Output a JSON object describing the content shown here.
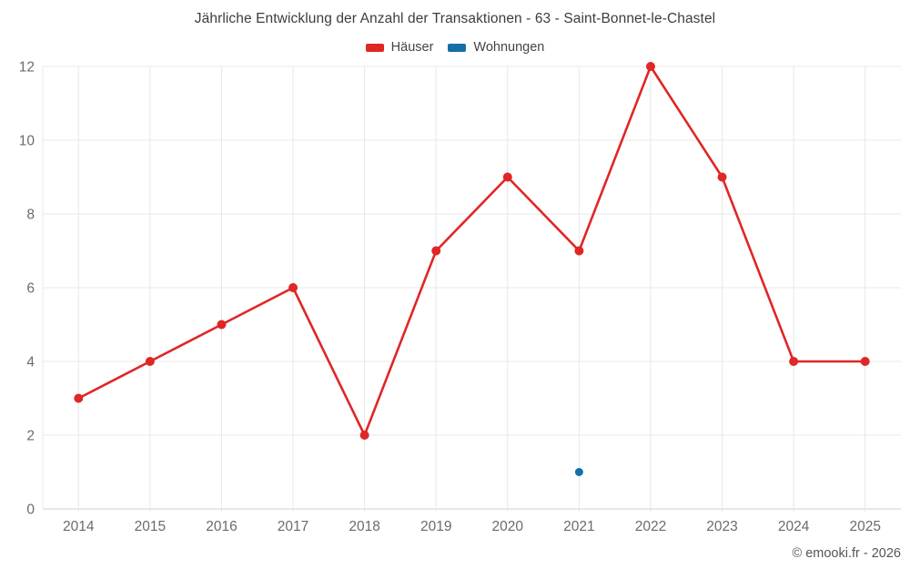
{
  "title": "Jährliche Entwicklung der Anzahl der Transaktionen - 63 - Saint-Bonnet-le-Chastel",
  "legend": {
    "items": [
      {
        "label": "Häuser",
        "color": "#e02626"
      },
      {
        "label": "Wohnungen",
        "color": "#146fa8"
      }
    ]
  },
  "footer": {
    "copyright": "© emooki.fr - 2026"
  },
  "colors": {
    "background": "#ffffff",
    "grid": "#e8e8e8",
    "axis": "#cccccc",
    "tick_label": "#6b6b6b",
    "title_text": "#3d3d3d",
    "legend_text": "#444444",
    "footer_text": "#555555"
  },
  "chart_data": {
    "type": "line",
    "title": "Jährliche Entwicklung der Anzahl der Transaktionen - 63 - Saint-Bonnet-le-Chastel",
    "categories": [
      "2014",
      "2015",
      "2016",
      "2017",
      "2018",
      "2019",
      "2020",
      "2021",
      "2022",
      "2023",
      "2024",
      "2025"
    ],
    "series": [
      {
        "name": "Häuser",
        "color": "#e02626",
        "marker_radius": 5,
        "line_width": 2.6,
        "values": [
          3,
          4,
          5,
          6,
          2,
          7,
          9,
          7,
          12,
          9,
          4,
          4
        ]
      },
      {
        "name": "Wohnungen",
        "color": "#146fa8",
        "marker_radius": 4.5,
        "line_width": 2.6,
        "values": [
          null,
          null,
          null,
          null,
          null,
          null,
          null,
          1,
          null,
          null,
          null,
          null
        ]
      }
    ],
    "xlabel": "",
    "ylabel": "",
    "ylim": [
      0,
      12
    ],
    "yticks": [
      0,
      2,
      4,
      6,
      8,
      10,
      12
    ],
    "grid": true,
    "legend_position": "top"
  }
}
